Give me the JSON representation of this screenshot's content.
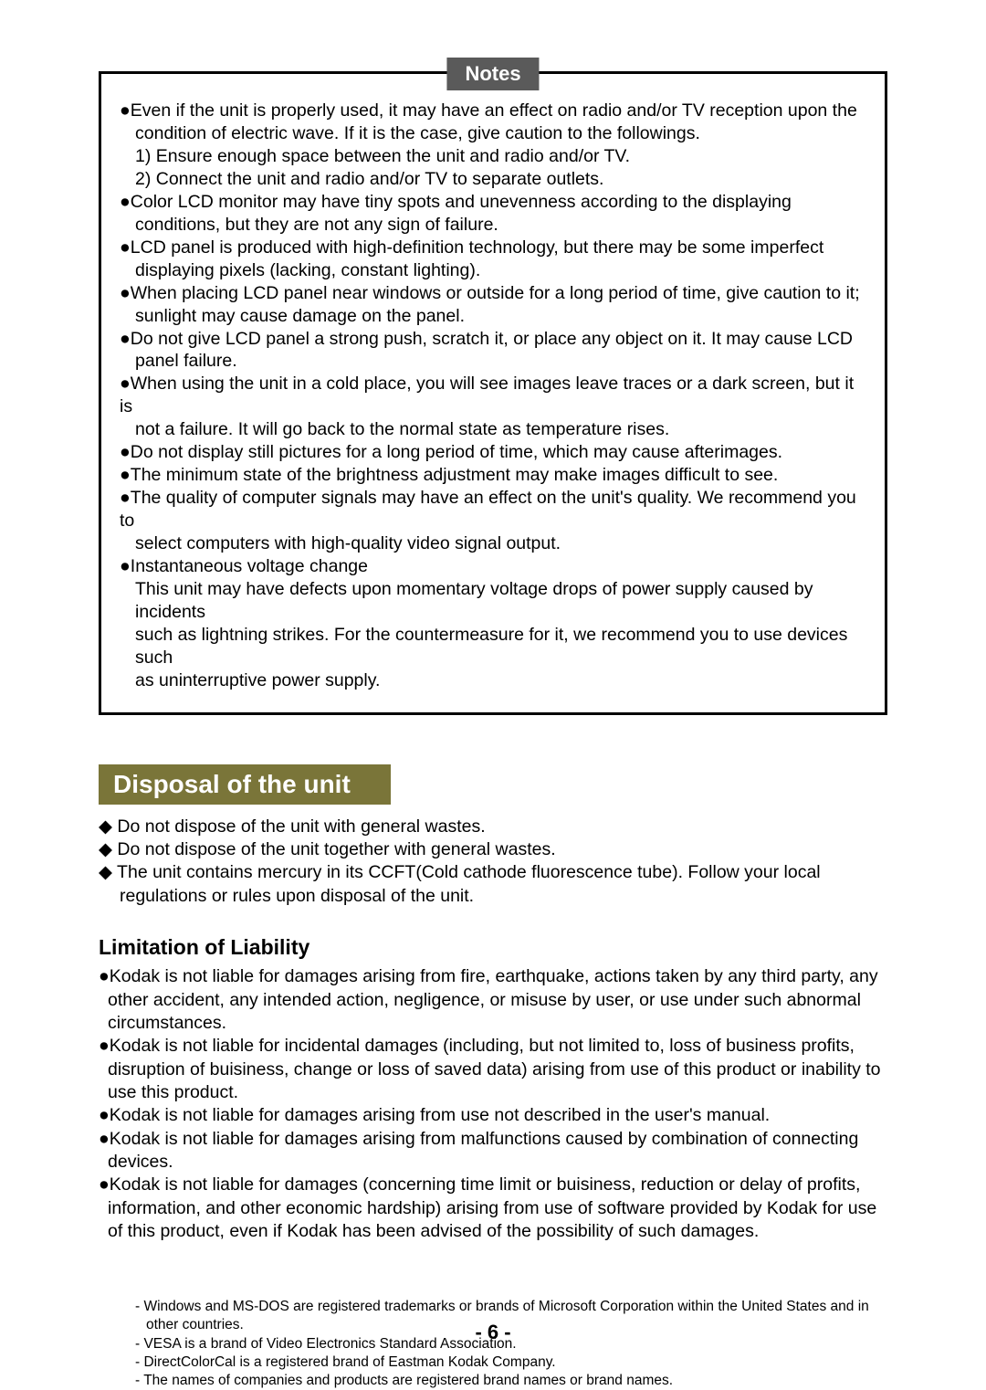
{
  "notes": {
    "title": "Notes",
    "lines": [
      "●Even if the unit is properly used, it may have an effect on radio and/or TV reception upon the",
      "  condition of electric wave. If it is the case, give caution to the followings.",
      "  1) Ensure enough space between the unit and radio and/or TV.",
      "  2) Connect the unit and radio and/or TV to separate outlets.",
      "●Color LCD monitor may have tiny spots and unevenness according to the displaying",
      "  conditions, but they are not any sign of failure.",
      "●LCD panel is produced with high-definition technology, but there may be some imperfect",
      "  displaying pixels (lacking, constant lighting).",
      "●When placing LCD panel near windows or outside for a long period of time, give caution to it;",
      "  sunlight may cause damage on the panel.",
      "●Do not give LCD panel a strong push, scratch it, or place any object on it.  It may cause LCD",
      "  panel failure.",
      "●When using the unit in a cold place, you will see images leave traces or a dark screen, but it is",
      "  not a failure. It will go back to the normal state as temperature rises.",
      "●Do not display still pictures for a long period of time, which may cause afterimages.",
      "●The minimum state of the brightness adjustment may make images difficult to see.",
      "●The quality of computer signals may have an effect on the unit's quality. We recommend you to",
      "  select computers with high-quality video signal output.",
      "●Instantaneous voltage change",
      "  This unit may have defects upon momentary voltage drops of power supply caused by incidents",
      "  such as lightning strikes. For the countermeasure for it, we recommend you to use devices such",
      "  as uninterruptive power supply."
    ]
  },
  "disposal": {
    "header": "Disposal of the unit",
    "items": [
      "◆ Do not dispose of the unit with general wastes.",
      "◆ Do not dispose of the unit together with general wastes.",
      "◆ The unit contains mercury in its CCFT(Cold cathode fluorescence tube). Follow your local regulations or rules upon disposal of the unit."
    ]
  },
  "liability": {
    "header": "Limitation of Liability",
    "items": [
      "●Kodak is not liable for damages arising from fire, earthquake, actions taken by any third party, any other accident, any intended action, negligence, or misuse by user, or use under such abnormal circumstances.",
      "●Kodak is not liable for incidental damages (including, but not limited to, loss of business profits, disruption of buisiness, change or loss of saved data) arising from use of this product or inability to use this product.",
      "●Kodak is not liable for damages arising from use not described in the user's manual.",
      "●Kodak is not liable for damages arising from malfunctions caused by combination of connecting devices.",
      "●Kodak is not liable for damages (concerning time limit or buisiness, reduction or delay of profits, information, and other economic hardship) arising from use of software provided by Kodak for use of this product, even if Kodak has been advised of the possibility of such damages."
    ]
  },
  "trademarks": [
    "- Windows and MS-DOS are registered trademarks or brands of Microsoft Corporation within the United States and in other countries.",
    "- VESA is a brand of Video Electronics Standard Association.",
    "- DirectColorCal is a registered brand of Eastman Kodak Company.",
    "- The names of companies and products are registered brand names or brand names."
  ],
  "page_number": "- 6 -",
  "colors": {
    "notes_label_bg": "#5a5a5a",
    "disposal_bg": "#7a7539"
  }
}
